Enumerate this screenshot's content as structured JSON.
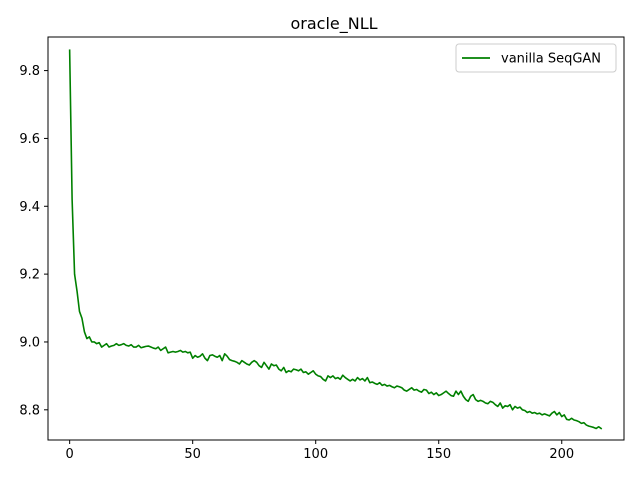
{
  "chart_data": {
    "type": "line",
    "title": "oracle_NLL",
    "xlabel": "",
    "ylabel": "",
    "xlim": [
      -8.8,
      225.3
    ],
    "ylim": [
      8.711,
      9.899
    ],
    "xticks": [
      0,
      50,
      100,
      150,
      200
    ],
    "yticks": [
      8.8,
      9.0,
      9.2,
      9.4,
      9.6,
      9.8
    ],
    "xtick_labels": [
      "0",
      "50",
      "100",
      "150",
      "200"
    ],
    "ytick_labels": [
      "8.8",
      "9.0",
      "9.2",
      "9.4",
      "9.6",
      "9.8"
    ],
    "grid": false,
    "legend": "top-right",
    "series": [
      {
        "name": "vanilla SeqGAN",
        "color": "#008000",
        "x": [
          0,
          1,
          2,
          3,
          4,
          5,
          6,
          7,
          8,
          9,
          10,
          11,
          12,
          13,
          14,
          15,
          16,
          17,
          18,
          19,
          20,
          21,
          22,
          23,
          24,
          25,
          26,
          27,
          28,
          29,
          30,
          31,
          32,
          33,
          34,
          35,
          36,
          37,
          38,
          39,
          40,
          41,
          42,
          43,
          44,
          45,
          46,
          47,
          48,
          49,
          50,
          51,
          52,
          53,
          54,
          55,
          56,
          57,
          58,
          59,
          60,
          61,
          62,
          63,
          64,
          65,
          66,
          67,
          68,
          69,
          70,
          71,
          72,
          73,
          74,
          75,
          76,
          77,
          78,
          79,
          80,
          81,
          82,
          83,
          84,
          85,
          86,
          87,
          88,
          89,
          90,
          91,
          92,
          93,
          94,
          95,
          96,
          97,
          98,
          99,
          100,
          101,
          102,
          103,
          104,
          105,
          106,
          107,
          108,
          109,
          110,
          111,
          112,
          113,
          114,
          115,
          116,
          117,
          118,
          119,
          120,
          121,
          122,
          123,
          124,
          125,
          126,
          127,
          128,
          129,
          130,
          131,
          132,
          133,
          134,
          135,
          136,
          137,
          138,
          139,
          140,
          141,
          142,
          143,
          144,
          145,
          146,
          147,
          148,
          149,
          150,
          151,
          152,
          153,
          154,
          155,
          156,
          157,
          158,
          159,
          160,
          161,
          162,
          163,
          164,
          165,
          166,
          167,
          168,
          169,
          170,
          171,
          172,
          173,
          174,
          175,
          176,
          177,
          178,
          179,
          180,
          181,
          182,
          183,
          184,
          185,
          186,
          187,
          188,
          189,
          190,
          191,
          192,
          193,
          194,
          195,
          196,
          197,
          198,
          199,
          200,
          201,
          202,
          203,
          204,
          205,
          206,
          207,
          208,
          209,
          210,
          211,
          212,
          213,
          214,
          215,
          216
        ],
        "y": [
          9.86,
          9.42,
          9.2,
          9.15,
          9.09,
          9.07,
          9.03,
          9.01,
          9.015,
          9.0,
          9.0,
          8.995,
          8.998,
          8.985,
          8.99,
          8.995,
          8.985,
          8.988,
          8.99,
          8.995,
          8.99,
          8.992,
          8.995,
          8.99,
          8.988,
          8.992,
          8.985,
          8.985,
          8.99,
          8.983,
          8.985,
          8.987,
          8.988,
          8.985,
          8.982,
          8.98,
          8.985,
          8.975,
          8.98,
          8.985,
          8.968,
          8.97,
          8.972,
          8.97,
          8.972,
          8.975,
          8.97,
          8.972,
          8.968,
          8.97,
          8.952,
          8.96,
          8.955,
          8.958,
          8.965,
          8.952,
          8.945,
          8.96,
          8.962,
          8.958,
          8.955,
          8.96,
          8.945,
          8.965,
          8.958,
          8.948,
          8.945,
          8.943,
          8.94,
          8.935,
          8.945,
          8.94,
          8.935,
          8.932,
          8.94,
          8.945,
          8.94,
          8.93,
          8.925,
          8.94,
          8.93,
          8.92,
          8.935,
          8.93,
          8.932,
          8.92,
          8.915,
          8.925,
          8.91,
          8.915,
          8.912,
          8.92,
          8.918,
          8.915,
          8.92,
          8.91,
          8.912,
          8.905,
          8.91,
          8.915,
          8.905,
          8.9,
          8.898,
          8.89,
          8.885,
          8.9,
          8.895,
          8.9,
          8.892,
          8.895,
          8.89,
          8.902,
          8.895,
          8.89,
          8.885,
          8.89,
          8.885,
          8.895,
          8.888,
          8.892,
          8.885,
          8.895,
          8.88,
          8.882,
          8.878,
          8.875,
          8.88,
          8.872,
          8.875,
          8.87,
          8.872,
          8.868,
          8.865,
          8.87,
          8.868,
          8.865,
          8.858,
          8.855,
          8.86,
          8.865,
          8.858,
          8.86,
          8.855,
          8.852,
          8.86,
          8.858,
          8.848,
          8.852,
          8.845,
          8.85,
          8.842,
          8.845,
          8.85,
          8.855,
          8.848,
          8.842,
          8.84,
          8.855,
          8.845,
          8.855,
          8.84,
          8.83,
          8.825,
          8.84,
          8.845,
          8.83,
          8.825,
          8.828,
          8.825,
          8.82,
          8.818,
          8.825,
          8.822,
          8.815,
          8.81,
          8.82,
          8.805,
          8.812,
          8.81,
          8.815,
          8.8,
          8.81,
          8.805,
          8.808,
          8.8,
          8.798,
          8.792,
          8.795,
          8.79,
          8.792,
          8.788,
          8.79,
          8.785,
          8.788,
          8.785,
          8.782,
          8.79,
          8.795,
          8.785,
          8.792,
          8.78,
          8.785,
          8.772,
          8.77,
          8.775,
          8.77,
          8.768,
          8.765,
          8.76,
          8.762,
          8.755,
          8.752,
          8.75,
          8.748,
          8.745,
          8.75,
          8.745
        ]
      }
    ]
  }
}
